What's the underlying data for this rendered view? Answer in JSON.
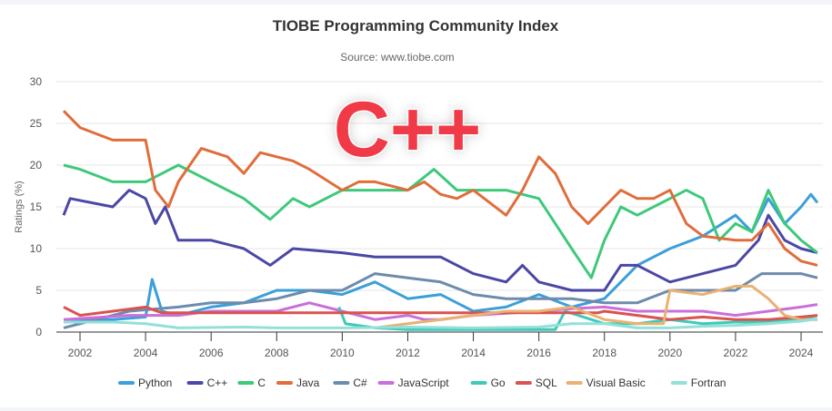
{
  "chart_data": {
    "type": "line",
    "title": "TIOBE Programming Community Index",
    "subtitle": "Source: www.tiobe.com",
    "ylabel": "Ratings (%)",
    "xlabel": "",
    "xlim": [
      2001.3,
      2024.7
    ],
    "ylim": [
      0,
      30
    ],
    "x_ticks": [
      "2002",
      "2004",
      "2006",
      "2008",
      "2010",
      "2012",
      "2014",
      "2016",
      "2018",
      "2020",
      "2022",
      "2024"
    ],
    "y_ticks": [
      "0",
      "5",
      "10",
      "15",
      "20",
      "25",
      "30"
    ],
    "grid": true,
    "legend": "bottom",
    "annotation": "C++",
    "series": [
      {
        "name": "Python",
        "color": "#3b9fd9",
        "points": [
          [
            2001.5,
            1.5
          ],
          [
            2003,
            1.5
          ],
          [
            2004,
            1.8
          ],
          [
            2004.2,
            6.3
          ],
          [
            2004.5,
            2.5
          ],
          [
            2005,
            2
          ],
          [
            2006,
            3
          ],
          [
            2007,
            3.5
          ],
          [
            2008,
            5
          ],
          [
            2009,
            5
          ],
          [
            2010,
            4.5
          ],
          [
            2011,
            6
          ],
          [
            2012,
            4
          ],
          [
            2013,
            4.5
          ],
          [
            2014,
            2.5
          ],
          [
            2015,
            3
          ],
          [
            2016,
            4.5
          ],
          [
            2017,
            3
          ],
          [
            2018,
            4
          ],
          [
            2018.5,
            6
          ],
          [
            2019,
            8
          ],
          [
            2020,
            10
          ],
          [
            2021,
            11.5
          ],
          [
            2022,
            14
          ],
          [
            2022.5,
            12
          ],
          [
            2023,
            16
          ],
          [
            2023.5,
            13
          ],
          [
            2024,
            15
          ],
          [
            2024.3,
            16.5
          ],
          [
            2024.5,
            15.5
          ]
        ]
      },
      {
        "name": "C++",
        "color": "#4b47a5",
        "points": [
          [
            2001.5,
            14
          ],
          [
            2001.7,
            16
          ],
          [
            2003,
            15
          ],
          [
            2003.5,
            17
          ],
          [
            2004,
            16
          ],
          [
            2004.3,
            13
          ],
          [
            2004.6,
            15
          ],
          [
            2005,
            11
          ],
          [
            2006,
            11
          ],
          [
            2007,
            10
          ],
          [
            2007.8,
            8
          ],
          [
            2008.5,
            10
          ],
          [
            2010,
            9.5
          ],
          [
            2011,
            9
          ],
          [
            2012,
            9
          ],
          [
            2013,
            9
          ],
          [
            2014,
            7
          ],
          [
            2015,
            6
          ],
          [
            2015.5,
            8
          ],
          [
            2016,
            6
          ],
          [
            2017,
            5
          ],
          [
            2018,
            5
          ],
          [
            2018.5,
            8
          ],
          [
            2019,
            8
          ],
          [
            2020,
            6
          ],
          [
            2021,
            7
          ],
          [
            2022,
            8
          ],
          [
            2022.7,
            11
          ],
          [
            2023,
            14
          ],
          [
            2023.5,
            11
          ],
          [
            2024,
            10
          ],
          [
            2024.5,
            9.5
          ]
        ]
      },
      {
        "name": "C",
        "color": "#3ec97a",
        "points": [
          [
            2001.5,
            20
          ],
          [
            2002,
            19.5
          ],
          [
            2003,
            18
          ],
          [
            2004,
            18
          ],
          [
            2005,
            20
          ],
          [
            2006,
            18
          ],
          [
            2007,
            16
          ],
          [
            2007.8,
            13.5
          ],
          [
            2008.5,
            16
          ],
          [
            2009,
            15
          ],
          [
            2010,
            17
          ],
          [
            2011,
            17
          ],
          [
            2012,
            17
          ],
          [
            2012.8,
            19.5
          ],
          [
            2013.5,
            17
          ],
          [
            2014,
            17
          ],
          [
            2015,
            17
          ],
          [
            2016,
            16
          ],
          [
            2017,
            10
          ],
          [
            2017.6,
            6.5
          ],
          [
            2018,
            11
          ],
          [
            2018.5,
            15
          ],
          [
            2019,
            14
          ],
          [
            2020,
            16
          ],
          [
            2020.5,
            17
          ],
          [
            2021,
            16
          ],
          [
            2021.5,
            11
          ],
          [
            2022,
            13
          ],
          [
            2022.5,
            12
          ],
          [
            2023,
            17
          ],
          [
            2023.5,
            13
          ],
          [
            2024,
            11
          ],
          [
            2024.5,
            9.5
          ]
        ]
      },
      {
        "name": "Java",
        "color": "#e06d3b",
        "points": [
          [
            2001.5,
            26.5
          ],
          [
            2002,
            24.5
          ],
          [
            2003,
            23
          ],
          [
            2004,
            23
          ],
          [
            2004.3,
            17
          ],
          [
            2004.7,
            15
          ],
          [
            2005,
            18
          ],
          [
            2005.7,
            22
          ],
          [
            2006.5,
            21
          ],
          [
            2007,
            19
          ],
          [
            2007.5,
            21.5
          ],
          [
            2008.5,
            20.5
          ],
          [
            2009,
            19.5
          ],
          [
            2010,
            17
          ],
          [
            2010.5,
            18
          ],
          [
            2011,
            18
          ],
          [
            2012,
            17
          ],
          [
            2012.5,
            18
          ],
          [
            2013,
            16.5
          ],
          [
            2013.5,
            16
          ],
          [
            2014,
            17
          ],
          [
            2015,
            14
          ],
          [
            2015.5,
            17
          ],
          [
            2016,
            21
          ],
          [
            2016.5,
            19
          ],
          [
            2017,
            15
          ],
          [
            2017.5,
            13
          ],
          [
            2018,
            15
          ],
          [
            2018.5,
            17
          ],
          [
            2019,
            16
          ],
          [
            2019.5,
            16
          ],
          [
            2020,
            17
          ],
          [
            2020.5,
            13
          ],
          [
            2021,
            11.5
          ],
          [
            2022,
            11
          ],
          [
            2022.5,
            11
          ],
          [
            2023,
            13
          ],
          [
            2023.5,
            10
          ],
          [
            2024,
            8.5
          ],
          [
            2024.5,
            8
          ]
        ]
      },
      {
        "name": "C#",
        "color": "#6d8bab",
        "points": [
          [
            2001.5,
            0.5
          ],
          [
            2002.5,
            1.5
          ],
          [
            2003.5,
            2.5
          ],
          [
            2005,
            3
          ],
          [
            2006,
            3.5
          ],
          [
            2007,
            3.5
          ],
          [
            2008,
            4
          ],
          [
            2009,
            5
          ],
          [
            2010,
            5
          ],
          [
            2011,
            7
          ],
          [
            2012,
            6.5
          ],
          [
            2013,
            6
          ],
          [
            2014,
            4.5
          ],
          [
            2015,
            4
          ],
          [
            2016,
            4
          ],
          [
            2017,
            4
          ],
          [
            2018,
            3.5
          ],
          [
            2019,
            3.5
          ],
          [
            2020,
            5
          ],
          [
            2021,
            5
          ],
          [
            2022,
            5
          ],
          [
            2022.8,
            7
          ],
          [
            2023.5,
            7
          ],
          [
            2024,
            7
          ],
          [
            2024.5,
            6.5
          ]
        ]
      },
      {
        "name": "JavaScript",
        "color": "#c96fd9",
        "points": [
          [
            2001.5,
            1.5
          ],
          [
            2003.5,
            2
          ],
          [
            2005,
            2
          ],
          [
            2006,
            2.5
          ],
          [
            2008,
            2.5
          ],
          [
            2009,
            3.5
          ],
          [
            2010,
            2.5
          ],
          [
            2011,
            1.5
          ],
          [
            2012,
            2
          ],
          [
            2012.5,
            1.5
          ],
          [
            2013,
            1.5
          ],
          [
            2014,
            2
          ],
          [
            2016,
            2.5
          ],
          [
            2017,
            2.8
          ],
          [
            2018,
            3
          ],
          [
            2019,
            2.5
          ],
          [
            2020,
            2.5
          ],
          [
            2021,
            2.5
          ],
          [
            2022,
            2
          ],
          [
            2023,
            2.5
          ],
          [
            2024,
            3
          ],
          [
            2024.5,
            3.3
          ]
        ]
      },
      {
        "name": "Go",
        "color": "#3fc9b9",
        "points": [
          [
            2009.9,
            3
          ],
          [
            2010.1,
            1
          ],
          [
            2011,
            0.5
          ],
          [
            2012,
            0.3
          ],
          [
            2014,
            0.3
          ],
          [
            2016.5,
            0.3
          ],
          [
            2016.8,
            2.5
          ],
          [
            2018,
            1
          ],
          [
            2019,
            1
          ],
          [
            2020,
            1.5
          ],
          [
            2021,
            1
          ],
          [
            2022,
            1.2
          ],
          [
            2023,
            1.2
          ],
          [
            2024,
            1.5
          ],
          [
            2024.5,
            2
          ]
        ]
      },
      {
        "name": "SQL",
        "color": "#d9534f",
        "points": [
          [
            2001.5,
            3
          ],
          [
            2002,
            2
          ],
          [
            2003,
            2.5
          ],
          [
            2004,
            3
          ],
          [
            2004.5,
            2.3
          ],
          [
            2017.8,
            2.3
          ],
          [
            2018,
            2.5
          ],
          [
            2019,
            2
          ],
          [
            2020,
            1.5
          ],
          [
            2021,
            1.8
          ],
          [
            2022,
            1.5
          ],
          [
            2023,
            1.5
          ],
          [
            2024,
            1.8
          ],
          [
            2024.5,
            2
          ]
        ]
      },
      {
        "name": "Visual Basic",
        "color": "#e9b172",
        "points": [
          [
            2011,
            0.5
          ],
          [
            2012,
            1
          ],
          [
            2013,
            1.5
          ],
          [
            2014,
            2
          ],
          [
            2015,
            2.5
          ],
          [
            2016,
            2.5
          ],
          [
            2017,
            3
          ],
          [
            2018,
            1.5
          ],
          [
            2019,
            1
          ],
          [
            2019.8,
            1
          ],
          [
            2020,
            5
          ],
          [
            2021,
            4.5
          ],
          [
            2022,
            5.5
          ],
          [
            2022.5,
            5.5
          ],
          [
            2023,
            4
          ],
          [
            2023.5,
            2
          ],
          [
            2024,
            1.5
          ],
          [
            2024.5,
            1.5
          ]
        ]
      },
      {
        "name": "Fortran",
        "color": "#93e0d9",
        "points": [
          [
            2001.5,
            1.2
          ],
          [
            2003,
            1.2
          ],
          [
            2004,
            1
          ],
          [
            2005,
            0.5
          ],
          [
            2007,
            0.6
          ],
          [
            2008,
            0.5
          ],
          [
            2010,
            0.5
          ],
          [
            2012,
            0.6
          ],
          [
            2014,
            0.5
          ],
          [
            2016,
            0.6
          ],
          [
            2017,
            1
          ],
          [
            2018,
            1
          ],
          [
            2019,
            0.5
          ],
          [
            2020,
            0.5
          ],
          [
            2021,
            0.7
          ],
          [
            2022,
            0.8
          ],
          [
            2023,
            1
          ],
          [
            2024,
            1.3
          ],
          [
            2024.5,
            1.6
          ]
        ]
      }
    ]
  }
}
